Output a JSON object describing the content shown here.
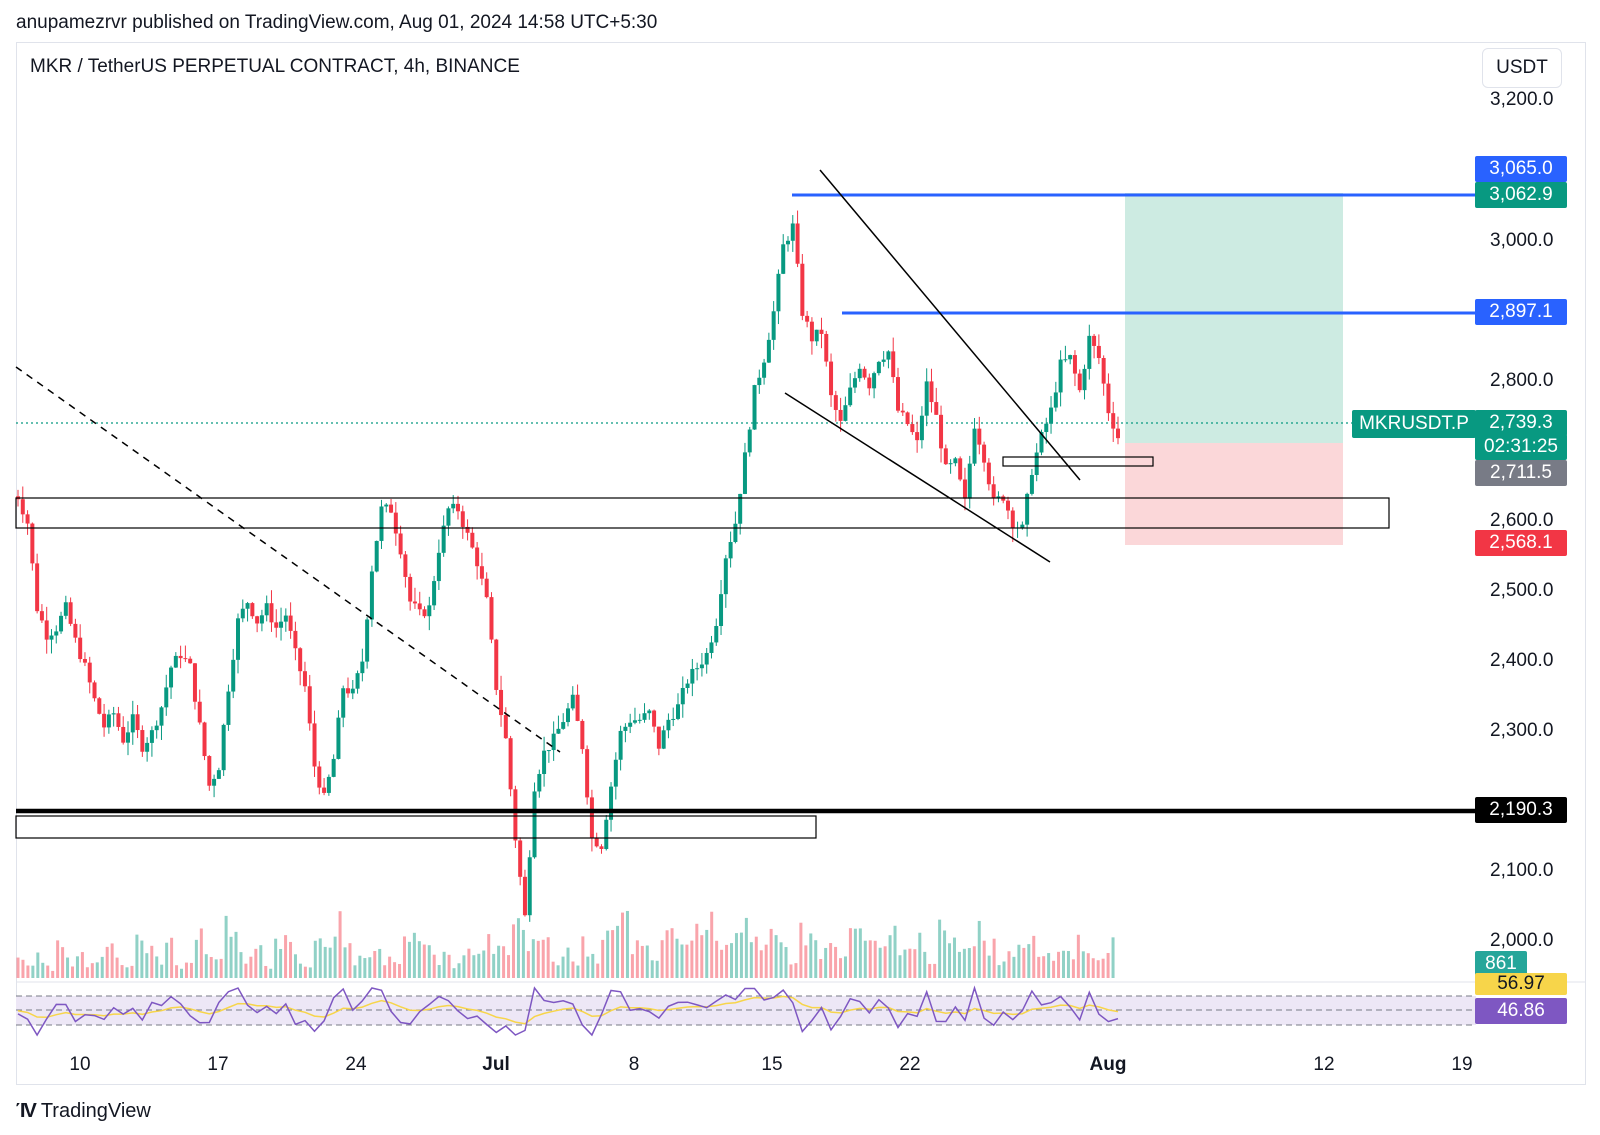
{
  "header": {
    "publish_line": "anupamezrvr published on TradingView.com, Aug 01, 2024 14:58 UTC+5:30",
    "symbol_line": "MKR / TetherUS PERPETUAL CONTRACT, 4h, BINANCE",
    "currency_button": "USDT"
  },
  "footer": {
    "brand_name": "TradingView"
  },
  "colors": {
    "up": "#089981",
    "down": "#f23645",
    "blue_line": "#2962ff",
    "profit_zone": "#c8ebe0",
    "loss_zone": "#fbd9db",
    "rsi": "#7e57c2",
    "rsi_ma": "#f7d54a"
  },
  "chart_data": {
    "type": "candlestick",
    "price_axis_ticks": [
      "3,200.0",
      "3,000.0",
      "2,800.0",
      "2,600.0",
      "2,500.0",
      "2,400.0",
      "2,300.0",
      "2,100.0",
      "2,000.0"
    ],
    "time_axis_ticks": [
      {
        "label": "10",
        "bold": false
      },
      {
        "label": "17",
        "bold": false
      },
      {
        "label": "24",
        "bold": false
      },
      {
        "label": "Jul",
        "bold": true
      },
      {
        "label": "8",
        "bold": false
      },
      {
        "label": "15",
        "bold": false
      },
      {
        "label": "22",
        "bold": false
      },
      {
        "label": "Aug",
        "bold": true
      },
      {
        "label": "12",
        "bold": false
      },
      {
        "label": "19",
        "bold": false
      }
    ],
    "ylim": [
      1950,
      3250
    ],
    "price_labels": [
      {
        "value": "3,065.0",
        "color": "#2962ff"
      },
      {
        "value": "3,062.9",
        "color": "#089981"
      },
      {
        "value": "2,897.1",
        "color": "#2962ff"
      },
      {
        "value": "2,739.3",
        "color": "#089981"
      },
      {
        "value": "02:31:25",
        "color": "#089981"
      },
      {
        "value": "2,711.5",
        "color": "#787b86"
      },
      {
        "value": "2,568.1",
        "color": "#f23645"
      },
      {
        "value": "2,190.3",
        "color": "#000000"
      },
      {
        "value": "861",
        "color": "#26a69a"
      },
      {
        "value": "56.97",
        "color": "#f7d54a"
      },
      {
        "value": "46.86",
        "color": "#7e57c2"
      }
    ],
    "symbol_label": "MKRUSDT.P",
    "last_price": 2739.3,
    "horizontal_levels": [
      3062.9,
      2897.1,
      2190.3
    ],
    "zones": [
      {
        "top": 2649,
        "bottom": 2606
      },
      {
        "top": 2195,
        "bottom": 2165
      },
      {
        "top": 2723,
        "bottom": 2711
      }
    ],
    "trade_position": {
      "entry": 2711.5,
      "target": 3062.9,
      "stop": 2568.1
    },
    "price_path": [
      2640,
      2600,
      2470,
      2430,
      2440,
      2470,
      2420,
      2380,
      2330,
      2290,
      2310,
      2270,
      2300,
      2260,
      2280,
      2320,
      2380,
      2400,
      2380,
      2290,
      2200,
      2230,
      2350,
      2450,
      2480,
      2450,
      2470,
      2440,
      2460,
      2400,
      2350,
      2230,
      2180,
      2240,
      2350,
      2340,
      2390,
      2530,
      2620,
      2620,
      2560,
      2480,
      2460,
      2470,
      2560,
      2620,
      2620,
      2580,
      2540,
      2480,
      2350,
      2270,
      2120,
      2000,
      2200,
      2250,
      2270,
      2300,
      2330,
      2260,
      2120,
      2110,
      2200,
      2280,
      2300,
      2300,
      2310,
      2260,
      2300,
      2320,
      2360,
      2380,
      2400,
      2450,
      2550,
      2600,
      2700,
      2800,
      2850,
      2920,
      3020,
      3050,
      2920,
      2880,
      2890,
      2790,
      2750,
      2800,
      2840,
      2810,
      2850,
      2860,
      2770,
      2750,
      2720,
      2810,
      2760,
      2680,
      2690,
      2630,
      2750,
      2700,
      2630,
      2640,
      2600,
      2590,
      2680,
      2730,
      2770,
      2840,
      2850,
      2800,
      2880,
      2850,
      2770,
      2730
    ],
    "volume_profile": [
      0.3,
      0.2,
      0.35,
      0.15,
      0.5,
      0.25,
      0.4,
      0.2,
      0.3,
      0.6,
      0.3,
      0.2,
      0.7,
      0.4,
      0.3,
      0.5,
      0.2,
      0.3,
      0.6,
      0.4,
      0.3,
      0.9,
      0.6,
      0.3,
      0.4,
      0.2,
      0.5,
      0.7,
      0.3,
      0.2,
      0.6,
      0.4,
      0.8,
      0.5,
      0.3,
      0.4,
      0.6,
      0.3,
      0.2,
      0.5,
      0.7,
      0.4,
      0.3,
      0.5,
      0.2,
      0.4,
      0.3,
      0.6,
      0.5,
      0.4,
      0.9,
      0.6,
      0.8,
      0.5,
      0.3,
      0.4,
      0.2,
      0.5,
      0.3,
      0.6,
      0.7,
      0.9,
      0.5,
      0.4,
      0.3,
      0.6,
      0.8,
      0.5,
      0.7,
      1.0,
      0.8,
      0.6,
      0.7,
      0.9,
      0.5,
      0.4,
      0.6,
      0.5,
      0.3,
      0.7,
      0.6,
      0.4,
      0.5,
      0.3,
      0.8,
      0.6,
      0.5,
      0.4,
      0.7,
      0.5,
      0.4,
      0.6,
      0.3,
      0.7,
      0.5,
      0.4,
      0.6,
      0.8,
      0.5,
      0.3,
      0.4,
      0.6,
      0.7,
      0.5,
      0.3,
      0.5,
      0.4,
      0.6,
      0.3,
      0.4,
      0.5
    ]
  }
}
